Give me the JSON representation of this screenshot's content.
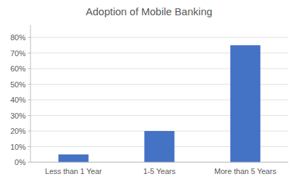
{
  "chart_data": {
    "type": "bar",
    "title": "Adoption of Mobile Banking",
    "categories": [
      "Less than 1 Year",
      "1-5 Years",
      "More than 5 Years"
    ],
    "values": [
      0.05,
      0.2,
      0.75
    ],
    "color": "#4472C4",
    "ylim": [
      0,
      0.88
    ],
    "yticks": [
      {
        "value": 0.0,
        "label": "0%"
      },
      {
        "value": 0.1,
        "label": "10%"
      },
      {
        "value": 0.2,
        "label": "20%"
      },
      {
        "value": 0.3,
        "label": "30%"
      },
      {
        "value": 0.4,
        "label": "40%"
      },
      {
        "value": 0.5,
        "label": "50%"
      },
      {
        "value": 0.6,
        "label": "60%"
      },
      {
        "value": 0.7,
        "label": "70%"
      },
      {
        "value": 0.8,
        "label": "80%"
      }
    ],
    "grid": true
  }
}
